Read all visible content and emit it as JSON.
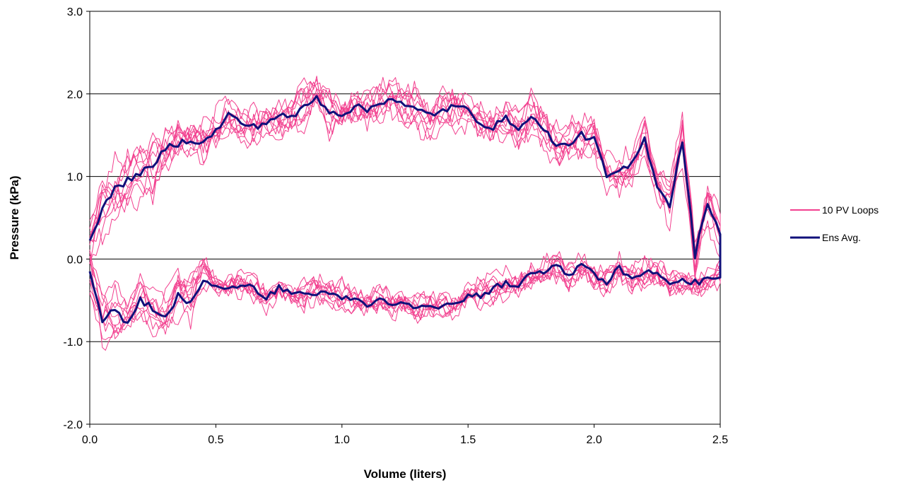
{
  "chart_data": {
    "type": "line",
    "title": "",
    "xlabel": "Volume (liters)",
    "ylabel": "Pressure (kPa)",
    "xlim": [
      0.0,
      2.5
    ],
    "ylim": [
      -2.0,
      3.0
    ],
    "x_ticks": [
      "0.0",
      "0.5",
      "1.0",
      "1.5",
      "2.0",
      "2.5"
    ],
    "y_ticks": [
      "-2.0",
      "-1.0",
      "0.0",
      "1.0",
      "2.0",
      "3.0"
    ],
    "grid": "horizontal",
    "legend_position": "right",
    "colors": {
      "pv_loops": "#f2408f",
      "ens_avg": "#10107a"
    },
    "series": [
      {
        "name": "10 PV Loops",
        "count": 10,
        "note_values_approximate": true,
        "upper_x": [
          0.0,
          0.05,
          0.1,
          0.15,
          0.2,
          0.25,
          0.3,
          0.35,
          0.4,
          0.45,
          0.5,
          0.55,
          0.6,
          0.65,
          0.7,
          0.75,
          0.8,
          0.85,
          0.9,
          0.95,
          1.0,
          1.05,
          1.1,
          1.15,
          1.2,
          1.25,
          1.3,
          1.35,
          1.4,
          1.45,
          1.5,
          1.55,
          1.6,
          1.65,
          1.7,
          1.75,
          1.8,
          1.85,
          1.9,
          1.95,
          2.0,
          2.05,
          2.1,
          2.15,
          2.2,
          2.25,
          2.3,
          2.35,
          2.4,
          2.45,
          2.5
        ],
        "lower_x": [
          2.5,
          2.45,
          2.4,
          2.35,
          2.3,
          2.25,
          2.2,
          2.15,
          2.1,
          2.05,
          2.0,
          1.95,
          1.9,
          1.85,
          1.8,
          1.75,
          1.7,
          1.65,
          1.6,
          1.55,
          1.5,
          1.45,
          1.4,
          1.35,
          1.3,
          1.25,
          1.2,
          1.15,
          1.1,
          1.05,
          1.0,
          0.95,
          0.9,
          0.85,
          0.8,
          0.75,
          0.7,
          0.65,
          0.6,
          0.55,
          0.5,
          0.45,
          0.4,
          0.35,
          0.3,
          0.25,
          0.2,
          0.15,
          0.1,
          0.05,
          0.0
        ]
      },
      {
        "name": "Ens Avg.",
        "upper_x": [
          0.0,
          0.05,
          0.1,
          0.15,
          0.2,
          0.25,
          0.3,
          0.35,
          0.4,
          0.45,
          0.5,
          0.55,
          0.6,
          0.65,
          0.7,
          0.75,
          0.8,
          0.85,
          0.9,
          0.95,
          1.0,
          1.05,
          1.1,
          1.15,
          1.2,
          1.25,
          1.3,
          1.35,
          1.4,
          1.45,
          1.5,
          1.55,
          1.6,
          1.65,
          1.7,
          1.75,
          1.8,
          1.85,
          1.9,
          1.95,
          2.0,
          2.05,
          2.1,
          2.15,
          2.2,
          2.25,
          2.3,
          2.35,
          2.4,
          2.45,
          2.5
        ],
        "upper_y": [
          0.25,
          0.6,
          0.85,
          0.95,
          1.05,
          1.1,
          1.35,
          1.4,
          1.45,
          1.4,
          1.55,
          1.75,
          1.65,
          1.6,
          1.65,
          1.75,
          1.7,
          1.85,
          1.95,
          1.8,
          1.75,
          1.85,
          1.8,
          1.9,
          1.95,
          1.85,
          1.8,
          1.75,
          1.8,
          1.85,
          1.8,
          1.65,
          1.6,
          1.7,
          1.6,
          1.7,
          1.6,
          1.35,
          1.4,
          1.5,
          1.45,
          1.0,
          1.05,
          1.15,
          1.45,
          0.9,
          0.65,
          1.45,
          0.05,
          0.7,
          0.3
        ],
        "lower_x": [
          2.5,
          2.45,
          2.4,
          2.35,
          2.3,
          2.25,
          2.2,
          2.15,
          2.1,
          2.05,
          2.0,
          1.95,
          1.9,
          1.85,
          1.8,
          1.75,
          1.7,
          1.65,
          1.6,
          1.55,
          1.5,
          1.45,
          1.4,
          1.35,
          1.3,
          1.25,
          1.2,
          1.15,
          1.1,
          1.05,
          1.0,
          0.95,
          0.9,
          0.85,
          0.8,
          0.75,
          0.7,
          0.65,
          0.6,
          0.55,
          0.5,
          0.45,
          0.4,
          0.35,
          0.3,
          0.25,
          0.2,
          0.15,
          0.1,
          0.05,
          0.0
        ],
        "lower_y": [
          -0.2,
          -0.25,
          -0.28,
          -0.25,
          -0.3,
          -0.2,
          -0.15,
          -0.25,
          -0.1,
          -0.28,
          -0.2,
          -0.05,
          -0.2,
          -0.05,
          -0.15,
          -0.2,
          -0.3,
          -0.3,
          -0.35,
          -0.45,
          -0.45,
          -0.55,
          -0.55,
          -0.6,
          -0.6,
          -0.55,
          -0.55,
          -0.5,
          -0.55,
          -0.5,
          -0.45,
          -0.45,
          -0.4,
          -0.45,
          -0.4,
          -0.35,
          -0.45,
          -0.35,
          -0.3,
          -0.35,
          -0.3,
          -0.25,
          -0.55,
          -0.45,
          -0.7,
          -0.6,
          -0.5,
          -0.8,
          -0.6,
          -0.75,
          -0.15
        ]
      }
    ]
  },
  "legend": {
    "items": [
      {
        "label": "10 PV Loops"
      },
      {
        "label": "Ens Avg."
      }
    ]
  }
}
